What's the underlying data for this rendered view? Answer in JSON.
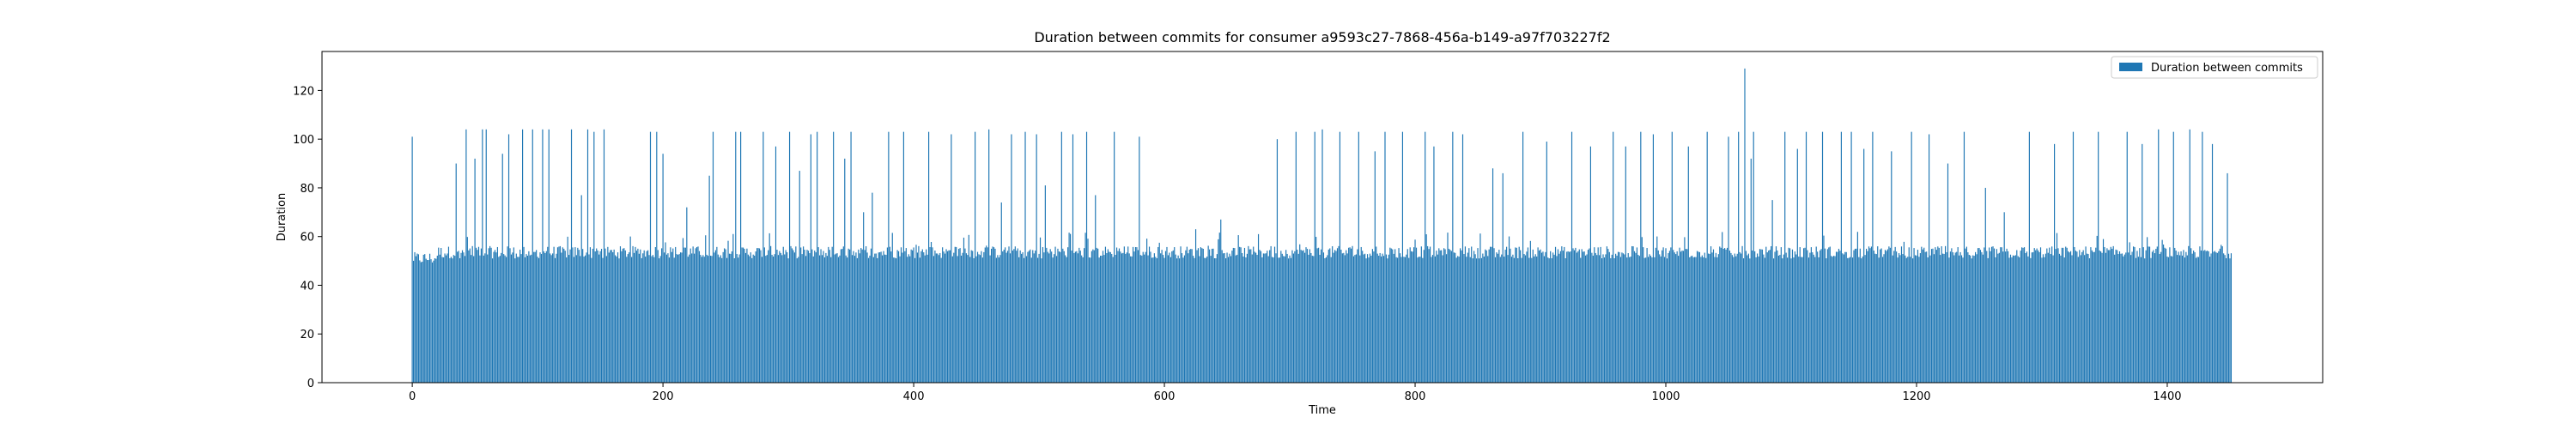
{
  "chart_data": {
    "type": "bar",
    "title": "Duration between commits for consumer a9593c27-7868-456a-b149-a97f703227f2",
    "xlabel": "Time",
    "ylabel": "Duration",
    "xlim": [
      -72,
      1524
    ],
    "ylim": [
      0,
      136
    ],
    "xticks": [
      0,
      200,
      400,
      600,
      800,
      1000,
      1200,
      1400
    ],
    "yticks": [
      0,
      20,
      40,
      60,
      80,
      100,
      120
    ],
    "grid": false,
    "legend": {
      "position": "top-right",
      "entries": [
        "Duration between commits"
      ]
    },
    "series": [
      {
        "name": "Duration between commits",
        "color": "#1f77b4",
        "x_start": 0,
        "x_step": 1,
        "count": 1452,
        "baseline_range": [
          50,
          56
        ],
        "values_note": "baseline values per x estimated between 50 and 56; spikes listed below",
        "spikes": [
          {
            "x": 0,
            "y": 101
          },
          {
            "x": 35,
            "y": 90
          },
          {
            "x": 43,
            "y": 104
          },
          {
            "x": 50,
            "y": 92
          },
          {
            "x": 56,
            "y": 104
          },
          {
            "x": 59,
            "y": 104
          },
          {
            "x": 72,
            "y": 94
          },
          {
            "x": 77,
            "y": 102
          },
          {
            "x": 88,
            "y": 104
          },
          {
            "x": 96,
            "y": 104
          },
          {
            "x": 104,
            "y": 104
          },
          {
            "x": 109,
            "y": 104
          },
          {
            "x": 127,
            "y": 104
          },
          {
            "x": 135,
            "y": 77
          },
          {
            "x": 140,
            "y": 104
          },
          {
            "x": 145,
            "y": 103
          },
          {
            "x": 153,
            "y": 104
          },
          {
            "x": 190,
            "y": 103
          },
          {
            "x": 195,
            "y": 103
          },
          {
            "x": 200,
            "y": 94
          },
          {
            "x": 219,
            "y": 72
          },
          {
            "x": 237,
            "y": 85
          },
          {
            "x": 240,
            "y": 103
          },
          {
            "x": 258,
            "y": 103
          },
          {
            "x": 262,
            "y": 103
          },
          {
            "x": 280,
            "y": 103
          },
          {
            "x": 290,
            "y": 97
          },
          {
            "x": 301,
            "y": 103
          },
          {
            "x": 309,
            "y": 87
          },
          {
            "x": 318,
            "y": 102
          },
          {
            "x": 323,
            "y": 103
          },
          {
            "x": 336,
            "y": 103
          },
          {
            "x": 345,
            "y": 92
          },
          {
            "x": 350,
            "y": 103
          },
          {
            "x": 360,
            "y": 70
          },
          {
            "x": 367,
            "y": 78
          },
          {
            "x": 380,
            "y": 103
          },
          {
            "x": 392,
            "y": 103
          },
          {
            "x": 412,
            "y": 103
          },
          {
            "x": 430,
            "y": 102
          },
          {
            "x": 449,
            "y": 103
          },
          {
            "x": 460,
            "y": 104
          },
          {
            "x": 470,
            "y": 74
          },
          {
            "x": 478,
            "y": 102
          },
          {
            "x": 489,
            "y": 103
          },
          {
            "x": 498,
            "y": 102
          },
          {
            "x": 505,
            "y": 81
          },
          {
            "x": 518,
            "y": 103
          },
          {
            "x": 527,
            "y": 102
          },
          {
            "x": 538,
            "y": 103
          },
          {
            "x": 545,
            "y": 77
          },
          {
            "x": 560,
            "y": 103
          },
          {
            "x": 580,
            "y": 101
          },
          {
            "x": 625,
            "y": 63
          },
          {
            "x": 645,
            "y": 67
          },
          {
            "x": 675,
            "y": 61
          },
          {
            "x": 690,
            "y": 100
          },
          {
            "x": 705,
            "y": 103
          },
          {
            "x": 720,
            "y": 103
          },
          {
            "x": 726,
            "y": 104
          },
          {
            "x": 740,
            "y": 103
          },
          {
            "x": 755,
            "y": 103
          },
          {
            "x": 768,
            "y": 95
          },
          {
            "x": 776,
            "y": 103
          },
          {
            "x": 790,
            "y": 103
          },
          {
            "x": 808,
            "y": 103
          },
          {
            "x": 815,
            "y": 97
          },
          {
            "x": 830,
            "y": 103
          },
          {
            "x": 838,
            "y": 102
          },
          {
            "x": 862,
            "y": 88
          },
          {
            "x": 870,
            "y": 86
          },
          {
            "x": 886,
            "y": 103
          },
          {
            "x": 905,
            "y": 99
          },
          {
            "x": 925,
            "y": 103
          },
          {
            "x": 940,
            "y": 97
          },
          {
            "x": 958,
            "y": 103
          },
          {
            "x": 968,
            "y": 97
          },
          {
            "x": 980,
            "y": 103
          },
          {
            "x": 990,
            "y": 102
          },
          {
            "x": 1005,
            "y": 103
          },
          {
            "x": 1018,
            "y": 97
          },
          {
            "x": 1033,
            "y": 103
          },
          {
            "x": 1050,
            "y": 101
          },
          {
            "x": 1058,
            "y": 103
          },
          {
            "x": 1063,
            "y": 129
          },
          {
            "x": 1068,
            "y": 92
          },
          {
            "x": 1070,
            "y": 103
          },
          {
            "x": 1085,
            "y": 75
          },
          {
            "x": 1095,
            "y": 103
          },
          {
            "x": 1105,
            "y": 96
          },
          {
            "x": 1112,
            "y": 103
          },
          {
            "x": 1125,
            "y": 103
          },
          {
            "x": 1140,
            "y": 103
          },
          {
            "x": 1148,
            "y": 103
          },
          {
            "x": 1158,
            "y": 96
          },
          {
            "x": 1165,
            "y": 103
          },
          {
            "x": 1180,
            "y": 95
          },
          {
            "x": 1196,
            "y": 103
          },
          {
            "x": 1210,
            "y": 102
          },
          {
            "x": 1225,
            "y": 90
          },
          {
            "x": 1238,
            "y": 103
          },
          {
            "x": 1255,
            "y": 80
          },
          {
            "x": 1270,
            "y": 70
          },
          {
            "x": 1290,
            "y": 103
          },
          {
            "x": 1310,
            "y": 98
          },
          {
            "x": 1325,
            "y": 103
          },
          {
            "x": 1345,
            "y": 103
          },
          {
            "x": 1368,
            "y": 103
          },
          {
            "x": 1380,
            "y": 98
          },
          {
            "x": 1393,
            "y": 104
          },
          {
            "x": 1405,
            "y": 103
          },
          {
            "x": 1418,
            "y": 104
          },
          {
            "x": 1428,
            "y": 103
          },
          {
            "x": 1436,
            "y": 98
          },
          {
            "x": 1448,
            "y": 86
          }
        ]
      }
    ]
  }
}
